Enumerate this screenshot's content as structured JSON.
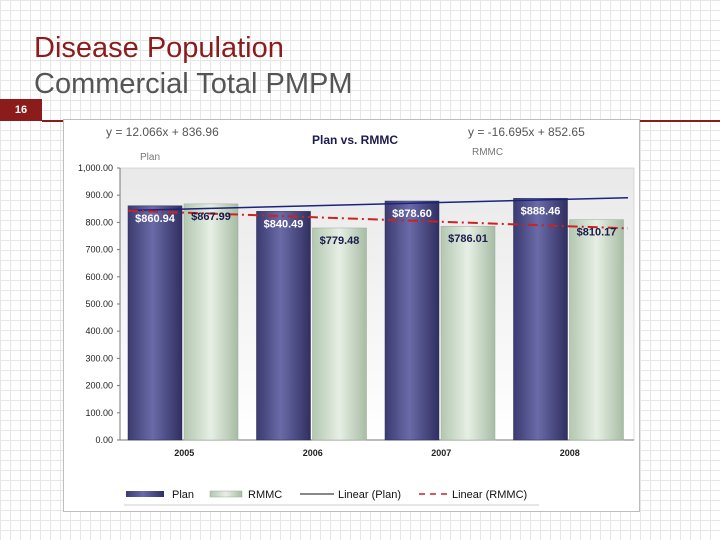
{
  "slide": {
    "number": "16",
    "title_line1": "Disease Population",
    "title_line2": "Commercial Total PMPM"
  },
  "chart_data": {
    "type": "bar",
    "title": "Plan vs. RMMC",
    "categories": [
      "2005",
      "2006",
      "2007",
      "2008"
    ],
    "series": [
      {
        "name": "Plan",
        "values": [
          860.94,
          840.49,
          878.6,
          888.46
        ],
        "labels": [
          "$860.94",
          "$840.49",
          "$878.60",
          "$888.46"
        ],
        "color": "#4a4a86"
      },
      {
        "name": "RMMC",
        "values": [
          867.99,
          779.48,
          786.01,
          810.17
        ],
        "labels": [
          "$867.99",
          "$779.48",
          "$786.01",
          "$810.17"
        ],
        "color": "#c9d8c6"
      }
    ],
    "trendlines": [
      {
        "name": "Linear (Plan)",
        "equation": "y = 12.066x + 836.96",
        "label": "Plan",
        "slope": 12.066,
        "intercept": 836.96,
        "color": "#1a237e",
        "dash": false
      },
      {
        "name": "Linear (RMMC)",
        "equation": "y = -16.695x + 852.65",
        "label": "RMMC",
        "slope": -16.695,
        "intercept": 852.65,
        "color": "#cc2222",
        "dash": true
      }
    ],
    "ylim": [
      0,
      1000
    ],
    "yticks": [
      "0.00",
      "100.00",
      "200.00",
      "300.00",
      "400.00",
      "500.00",
      "600.00",
      "700.00",
      "800.00",
      "900.00",
      "1,000.00"
    ],
    "legend_position": "bottom",
    "grid": false
  }
}
